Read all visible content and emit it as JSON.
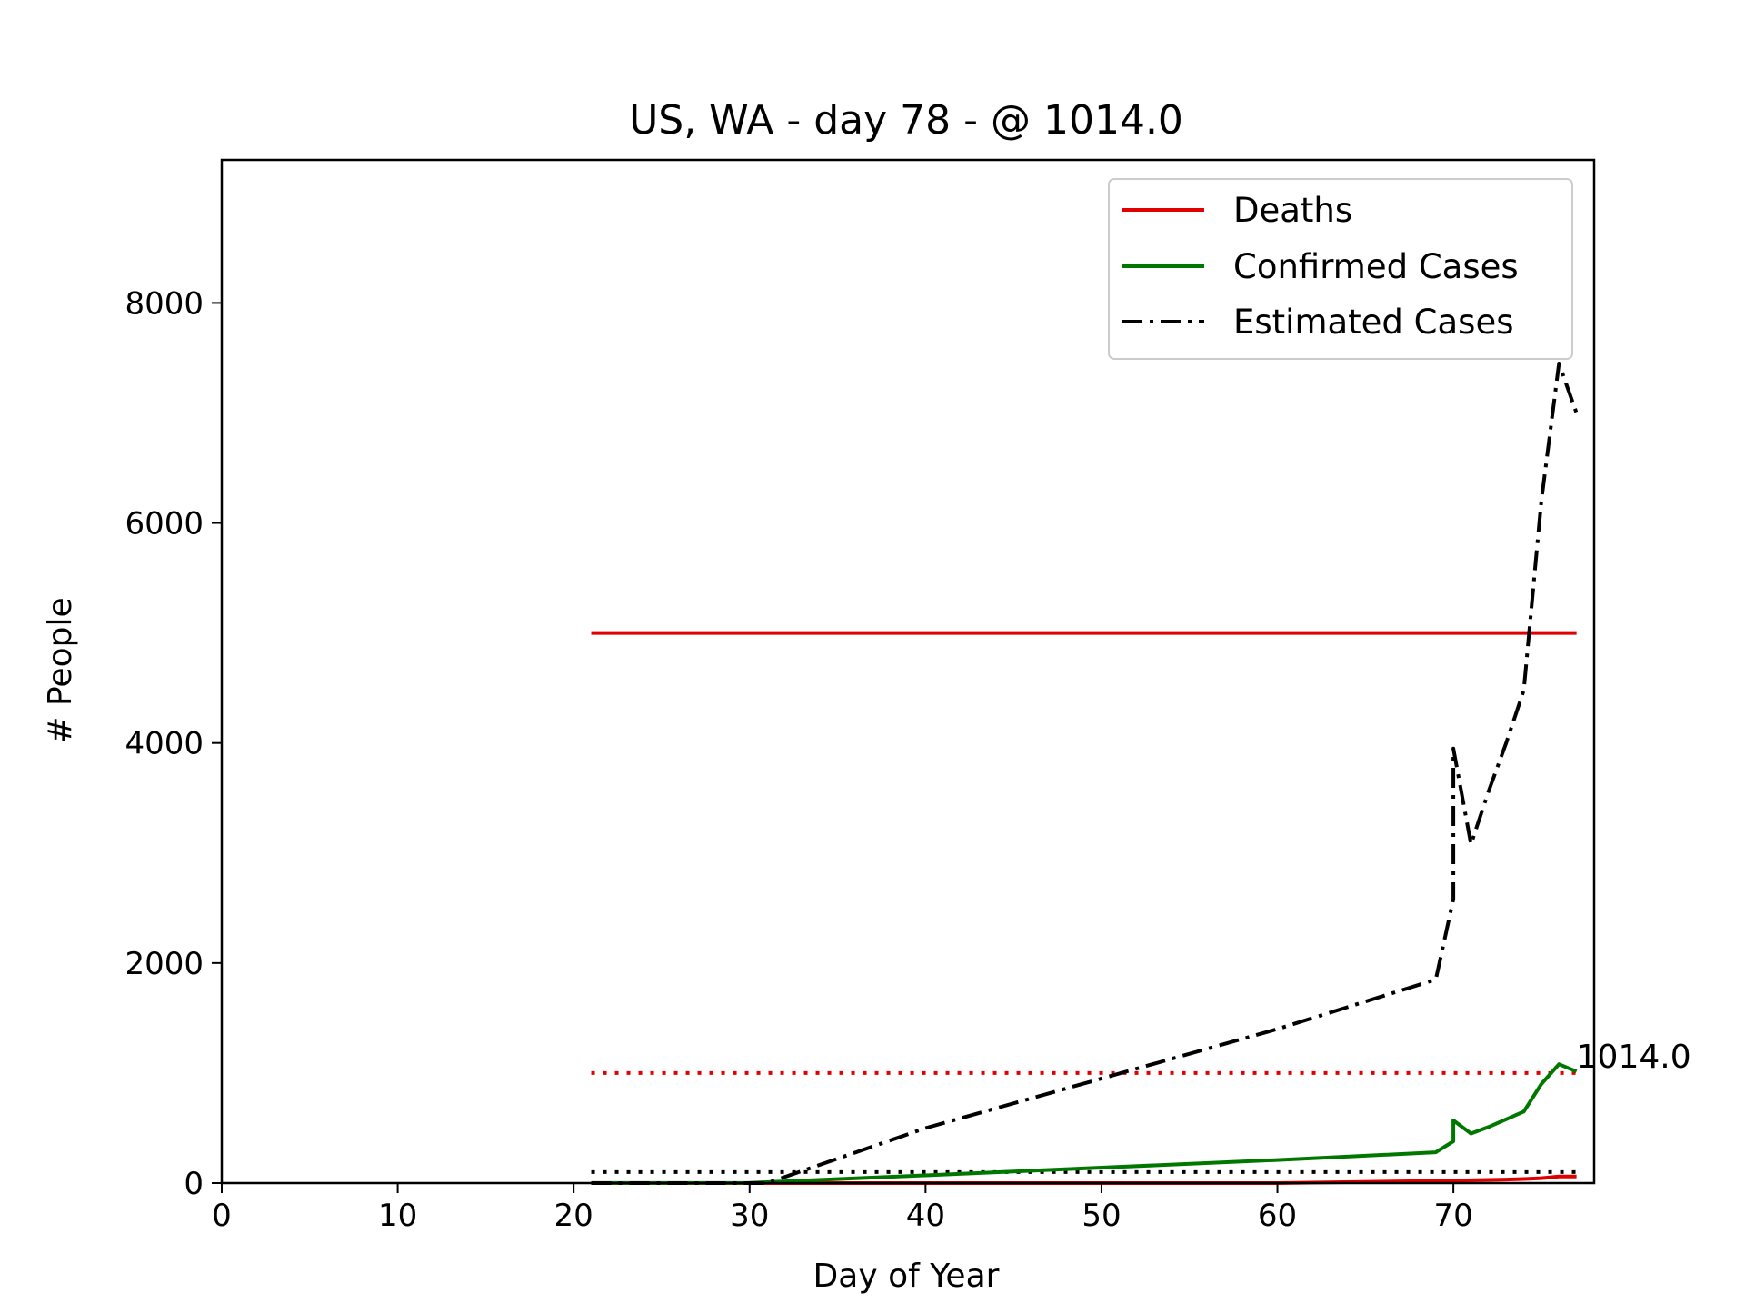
{
  "chart_data": {
    "type": "line",
    "title": "US, WA - day 78 - @ 1014.0",
    "xlabel": "Day of Year",
    "ylabel": "# People",
    "xlim": [
      0,
      78
    ],
    "ylim": [
      0,
      9300
    ],
    "x_ticks": [
      0,
      10,
      20,
      30,
      40,
      50,
      60,
      70
    ],
    "x_tick_labels": [
      "0",
      "10",
      "20",
      "30",
      "40",
      "50",
      "60",
      "70"
    ],
    "y_ticks": [
      0,
      2000,
      4000,
      6000,
      8000
    ],
    "y_tick_labels": [
      "0",
      "2000",
      "4000",
      "6000",
      "8000"
    ],
    "grid": false,
    "legend_position": "upper right",
    "series": [
      {
        "name": "Deaths",
        "color": "#e00000",
        "style": "solid",
        "x": [
          21,
          30,
          40,
          50,
          60,
          69,
          70,
          71,
          72,
          73,
          74,
          75,
          76,
          77
        ],
        "y": [
          0,
          0,
          0,
          0,
          0,
          20,
          24,
          26,
          29,
          32,
          37,
          45,
          60,
          60
        ]
      },
      {
        "name": "Confirmed Cases",
        "color": "#007800",
        "style": "solid",
        "x": [
          21,
          30,
          40,
          50,
          60,
          69,
          70,
          70,
          71,
          72,
          73,
          74,
          75,
          76,
          77
        ],
        "y": [
          1,
          2,
          70,
          140,
          210,
          280,
          380,
          570,
          450,
          510,
          580,
          650,
          900,
          1080,
          1014
        ]
      },
      {
        "name": "Estimated Cases",
        "color": "#000000",
        "style": "dashdot",
        "x": [
          21,
          31,
          40,
          50,
          60,
          69,
          70,
          70,
          70,
          71,
          72,
          73,
          74,
          75,
          76,
          77
        ],
        "y": [
          0,
          0,
          500,
          950,
          1400,
          1850,
          2580,
          3900,
          3950,
          3080,
          3560,
          4000,
          4480,
          6200,
          7450,
          7000
        ]
      }
    ],
    "reference_lines": [
      {
        "y": 5000,
        "x": [
          21,
          77
        ],
        "color": "#e00000",
        "style": "solid"
      },
      {
        "y": 1000,
        "x": [
          21,
          77
        ],
        "color": "#e00000",
        "style": "dotted"
      },
      {
        "y": 100,
        "x": [
          21,
          77
        ],
        "color": "#000000",
        "style": "dotted"
      }
    ],
    "annotation": {
      "text": "1014.0",
      "x": 77,
      "y": 1014
    }
  }
}
